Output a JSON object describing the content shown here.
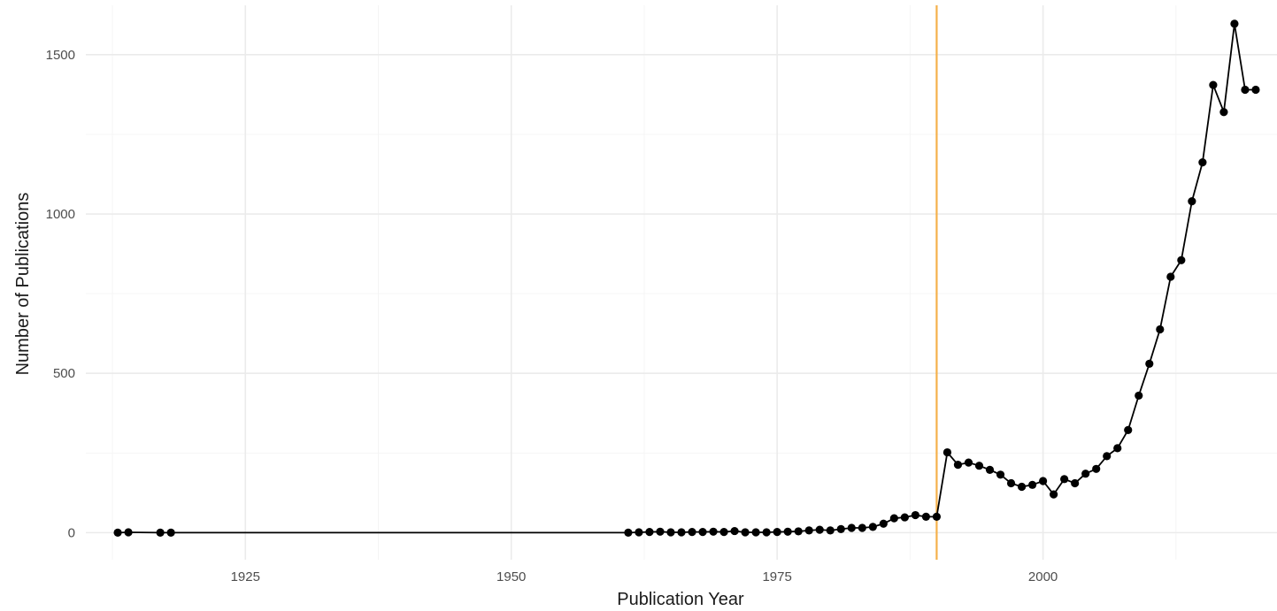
{
  "chart_data": {
    "type": "line",
    "title": "",
    "xlabel": "Publication Year",
    "ylabel": "Number of Publications",
    "xlim": [
      1910,
      2022
    ],
    "ylim": [
      -85,
      1655
    ],
    "x_ticks": [
      1925,
      1950,
      1975,
      2000
    ],
    "y_ticks": [
      0,
      500,
      1000,
      1500
    ],
    "x_minor_ticks": [
      1912.5,
      1937.5,
      1962.5,
      1987.5,
      2012.5
    ],
    "y_minor_ticks": [
      250,
      750,
      1250
    ],
    "grid": true,
    "legend": "none",
    "reference_line": {
      "orientation": "vertical",
      "x": 1990,
      "color": "#f5b04a"
    },
    "series_color": "#000000",
    "series": [
      {
        "x": [
          1913,
          1914,
          1917,
          1918,
          1961,
          1962,
          1963,
          1964,
          1965,
          1966,
          1967,
          1968,
          1969,
          1970,
          1971,
          1972,
          1973,
          1974,
          1975,
          1976,
          1977,
          1978,
          1979,
          1980,
          1981,
          1982,
          1983,
          1984,
          1985,
          1986,
          1987,
          1988,
          1989,
          1990,
          1991,
          1992,
          1993,
          1994,
          1995,
          1996,
          1997,
          1998,
          1999,
          2000,
          2001,
          2002,
          2003,
          2004,
          2005,
          2006,
          2007,
          2008,
          2009,
          2010,
          2011,
          2012,
          2013,
          2014,
          2015,
          2016,
          2017,
          2018,
          2019,
          2020
        ],
        "y": [
          0,
          1,
          0,
          0,
          0,
          1,
          2,
          3,
          1,
          1,
          2,
          2,
          3,
          2,
          5,
          1,
          1,
          1,
          2,
          3,
          4,
          7,
          9,
          7,
          11,
          15,
          15,
          18,
          28,
          45,
          48,
          55,
          50,
          50,
          252,
          213,
          220,
          210,
          197,
          182,
          155,
          144,
          150,
          162,
          120,
          168,
          155,
          185,
          200,
          240,
          265,
          322,
          430,
          530,
          638,
          803,
          855,
          1040,
          1162,
          1405,
          1320,
          1597,
          1390,
          1390
        ]
      }
    ]
  }
}
